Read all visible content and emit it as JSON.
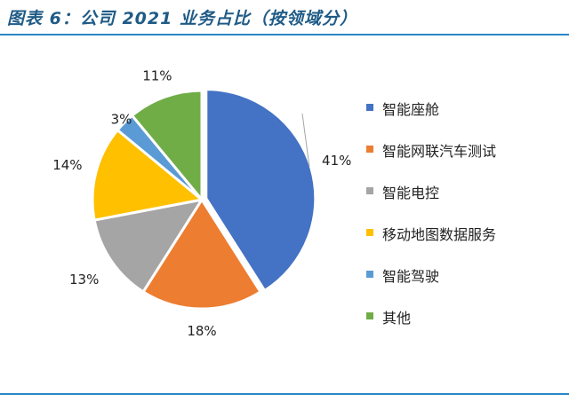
{
  "title": "图表 6：公司 2021 业务占比（按领域分）",
  "chart_data": {
    "type": "pie",
    "title": "图表 6：公司 2021 业务占比（按领域分）",
    "legend_position": "right",
    "slices": [
      {
        "label": "智能座舱",
        "value": 41,
        "display": "41%",
        "color": "#4472c4"
      },
      {
        "label": "智能网联汽车测试",
        "value": 18,
        "display": "18%",
        "color": "#ed7d31"
      },
      {
        "label": "智能电控",
        "value": 13,
        "display": "13%",
        "color": "#a5a5a5"
      },
      {
        "label": "移动地图数据服务",
        "value": 14,
        "display": "14%",
        "color": "#ffc000"
      },
      {
        "label": "智能驾驶",
        "value": 3,
        "display": "3%",
        "color": "#5b9bd5"
      },
      {
        "label": "其他",
        "value": 11,
        "display": "11%",
        "color": "#70ad47"
      }
    ]
  }
}
